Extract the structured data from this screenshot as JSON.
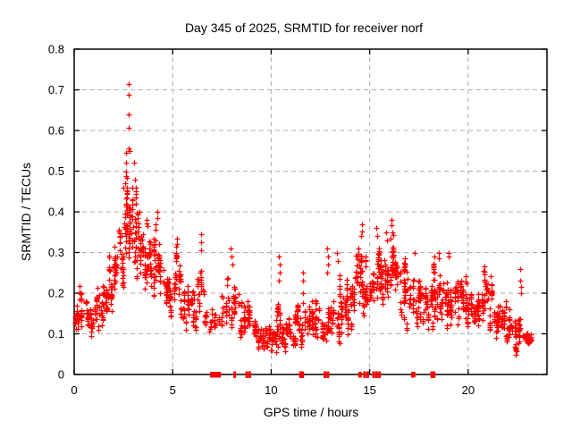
{
  "chart_data": {
    "type": "scatter",
    "title": "Day 345 of 2025, SRMTID for receiver norf",
    "xlabel": "GPS time / hours",
    "ylabel": "SRMTID / TECUs",
    "xlim": [
      0,
      24
    ],
    "ylim": [
      0,
      0.8
    ],
    "grid": true,
    "legend": "none",
    "marker": "plus",
    "marker_color": "#ff0000",
    "grid_color": "#b0b0b0",
    "frame_color": "#000000",
    "xticks": [
      [
        0,
        "0"
      ],
      [
        5,
        "5"
      ],
      [
        10,
        "10"
      ],
      [
        15,
        "15"
      ],
      [
        20,
        "20"
      ]
    ],
    "yticks": [
      [
        0,
        "0"
      ],
      [
        0.1,
        "0.1"
      ],
      [
        0.2,
        "0.2"
      ],
      [
        0.3,
        "0.3"
      ],
      [
        0.4,
        "0.4"
      ],
      [
        0.5,
        "0.5"
      ],
      [
        0.6,
        "0.6"
      ],
      [
        0.7,
        "0.7"
      ],
      [
        0.8,
        "0.8"
      ]
    ],
    "data_time_range_hours": [
      0,
      23.25
    ],
    "bins_format": [
      "bin_center_hour",
      "mean_tecu",
      "spread_tecu",
      "point_count"
    ],
    "bins": [
      [
        0.125,
        0.15,
        0.045,
        24
      ],
      [
        0.375,
        0.16,
        0.04,
        20
      ],
      [
        0.625,
        0.15,
        0.04,
        18
      ],
      [
        0.875,
        0.13,
        0.035,
        18
      ],
      [
        1.125,
        0.15,
        0.045,
        20
      ],
      [
        1.375,
        0.17,
        0.05,
        22
      ],
      [
        1.625,
        0.19,
        0.05,
        22
      ],
      [
        1.875,
        0.22,
        0.055,
        24
      ],
      [
        2.125,
        0.26,
        0.06,
        26
      ],
      [
        2.375,
        0.3,
        0.07,
        28
      ],
      [
        2.625,
        0.36,
        0.08,
        30
      ],
      [
        2.875,
        0.38,
        0.08,
        30
      ],
      [
        3.125,
        0.36,
        0.07,
        28
      ],
      [
        3.375,
        0.33,
        0.065,
        26
      ],
      [
        3.625,
        0.3,
        0.06,
        24
      ],
      [
        3.875,
        0.28,
        0.06,
        24
      ],
      [
        4.125,
        0.27,
        0.06,
        24
      ],
      [
        4.375,
        0.25,
        0.055,
        22
      ],
      [
        4.625,
        0.24,
        0.05,
        22
      ],
      [
        4.875,
        0.21,
        0.05,
        20
      ],
      [
        5.125,
        0.22,
        0.05,
        20
      ],
      [
        5.375,
        0.2,
        0.05,
        20
      ],
      [
        5.625,
        0.18,
        0.045,
        20
      ],
      [
        5.875,
        0.17,
        0.045,
        18
      ],
      [
        6.125,
        0.16,
        0.045,
        18
      ],
      [
        6.375,
        0.19,
        0.06,
        18
      ],
      [
        6.625,
        0.14,
        0.04,
        14
      ],
      [
        6.875,
        0.12,
        0.03,
        10
      ],
      [
        7.125,
        0.12,
        0.03,
        8
      ],
      [
        7.375,
        0.13,
        0.035,
        9
      ],
      [
        7.625,
        0.15,
        0.045,
        12
      ],
      [
        7.875,
        0.19,
        0.055,
        16
      ],
      [
        8.125,
        0.16,
        0.05,
        18
      ],
      [
        8.375,
        0.14,
        0.04,
        18
      ],
      [
        8.625,
        0.13,
        0.04,
        18
      ],
      [
        8.875,
        0.12,
        0.035,
        20
      ],
      [
        9.125,
        0.1,
        0.03,
        22
      ],
      [
        9.375,
        0.1,
        0.03,
        22
      ],
      [
        9.625,
        0.09,
        0.028,
        24
      ],
      [
        9.875,
        0.09,
        0.028,
        24
      ],
      [
        10.125,
        0.1,
        0.03,
        24
      ],
      [
        10.375,
        0.13,
        0.055,
        24
      ],
      [
        10.625,
        0.1,
        0.03,
        22
      ],
      [
        10.875,
        0.1,
        0.03,
        22
      ],
      [
        11.125,
        0.11,
        0.032,
        22
      ],
      [
        11.375,
        0.12,
        0.04,
        22
      ],
      [
        11.625,
        0.14,
        0.055,
        20
      ],
      [
        11.875,
        0.12,
        0.04,
        20
      ],
      [
        12.125,
        0.12,
        0.04,
        20
      ],
      [
        12.375,
        0.14,
        0.05,
        20
      ],
      [
        12.625,
        0.12,
        0.04,
        20
      ],
      [
        12.875,
        0.14,
        0.055,
        20
      ],
      [
        13.125,
        0.14,
        0.05,
        22
      ],
      [
        13.375,
        0.18,
        0.055,
        22
      ],
      [
        13.625,
        0.17,
        0.05,
        22
      ],
      [
        13.875,
        0.18,
        0.055,
        24
      ],
      [
        14.125,
        0.2,
        0.055,
        24
      ],
      [
        14.375,
        0.24,
        0.06,
        24
      ],
      [
        14.625,
        0.25,
        0.065,
        24
      ],
      [
        14.875,
        0.22,
        0.055,
        22
      ],
      [
        15.125,
        0.2,
        0.055,
        22
      ],
      [
        15.375,
        0.26,
        0.055,
        24
      ],
      [
        15.625,
        0.23,
        0.055,
        22
      ],
      [
        15.875,
        0.25,
        0.055,
        22
      ],
      [
        16.125,
        0.28,
        0.055,
        24
      ],
      [
        16.375,
        0.26,
        0.055,
        22
      ],
      [
        16.625,
        0.22,
        0.055,
        22
      ],
      [
        16.875,
        0.2,
        0.05,
        22
      ],
      [
        17.125,
        0.18,
        0.05,
        20
      ],
      [
        17.375,
        0.17,
        0.05,
        20
      ],
      [
        17.625,
        0.18,
        0.05,
        22
      ],
      [
        17.875,
        0.17,
        0.05,
        22
      ],
      [
        18.125,
        0.18,
        0.05,
        22
      ],
      [
        18.375,
        0.2,
        0.055,
        22
      ],
      [
        18.625,
        0.19,
        0.05,
        22
      ],
      [
        18.875,
        0.18,
        0.05,
        22
      ],
      [
        19.125,
        0.17,
        0.045,
        22
      ],
      [
        19.375,
        0.18,
        0.045,
        22
      ],
      [
        19.625,
        0.17,
        0.04,
        22
      ],
      [
        19.875,
        0.16,
        0.04,
        22
      ],
      [
        20.125,
        0.17,
        0.04,
        22
      ],
      [
        20.375,
        0.16,
        0.04,
        22
      ],
      [
        20.625,
        0.18,
        0.045,
        22
      ],
      [
        20.875,
        0.21,
        0.05,
        22
      ],
      [
        21.125,
        0.18,
        0.05,
        22
      ],
      [
        21.375,
        0.16,
        0.045,
        22
      ],
      [
        21.625,
        0.14,
        0.04,
        22
      ],
      [
        21.875,
        0.13,
        0.038,
        22
      ],
      [
        22.125,
        0.11,
        0.03,
        22
      ],
      [
        22.375,
        0.1,
        0.03,
        20
      ],
      [
        22.625,
        0.12,
        0.05,
        18
      ],
      [
        22.875,
        0.09,
        0.022,
        20
      ],
      [
        23.125,
        0.09,
        0.022,
        14
      ]
    ],
    "feature_points": [
      [
        2.75,
        0.715
      ],
      [
        2.75,
        0.688
      ],
      [
        2.76,
        0.64
      ],
      [
        2.77,
        0.606
      ],
      [
        2.78,
        0.556
      ],
      [
        2.8,
        0.55
      ],
      [
        2.62,
        0.545
      ],
      [
        2.63,
        0.52
      ],
      [
        2.62,
        0.5
      ],
      [
        2.64,
        0.487
      ],
      [
        2.6,
        0.47
      ],
      [
        3.05,
        0.52
      ],
      [
        3.1,
        0.48
      ],
      [
        2.5,
        0.46
      ],
      [
        2.95,
        0.46
      ],
      [
        3.15,
        0.45
      ],
      [
        4.2,
        0.4
      ],
      [
        4.22,
        0.385
      ],
      [
        5.2,
        0.335
      ],
      [
        5.22,
        0.32
      ],
      [
        6.43,
        0.345
      ],
      [
        6.45,
        0.325
      ],
      [
        6.44,
        0.305
      ],
      [
        7.95,
        0.31
      ],
      [
        8.0,
        0.29
      ],
      [
        8.02,
        0.27
      ],
      [
        10.4,
        0.29
      ],
      [
        10.42,
        0.27
      ],
      [
        10.44,
        0.25
      ],
      [
        10.41,
        0.23
      ],
      [
        11.62,
        0.25
      ],
      [
        11.6,
        0.23
      ],
      [
        12.85,
        0.31
      ],
      [
        12.88,
        0.29
      ],
      [
        12.9,
        0.27
      ],
      [
        12.86,
        0.25
      ],
      [
        13.35,
        0.3
      ],
      [
        13.38,
        0.28
      ],
      [
        14.6,
        0.37
      ],
      [
        14.62,
        0.352
      ],
      [
        14.58,
        0.34
      ],
      [
        15.35,
        0.36
      ],
      [
        15.38,
        0.34
      ],
      [
        15.85,
        0.35
      ],
      [
        15.87,
        0.33
      ],
      [
        16.1,
        0.38
      ],
      [
        16.12,
        0.366
      ],
      [
        16.15,
        0.35
      ],
      [
        16.05,
        0.335
      ],
      [
        17.3,
        0.3
      ],
      [
        18.5,
        0.3
      ],
      [
        18.52,
        0.285
      ],
      [
        19.0,
        0.3
      ],
      [
        19.03,
        0.29
      ],
      [
        22.65,
        0.26
      ],
      [
        22.66,
        0.23
      ],
      [
        22.67,
        0.215
      ],
      [
        22.68,
        0.2
      ]
    ],
    "baseline_marks": {
      "color": "#ff0000",
      "blocks_hours": [
        [
          6.9,
          7.45
        ],
        [
          14.42,
          14.6
        ],
        [
          17.1,
          17.32
        ]
      ],
      "singles_hours": [
        8.15,
        8.76,
        8.91,
        11.49,
        11.6,
        12.73,
        12.88,
        14.74,
        14.9,
        15.2,
        15.35,
        15.5,
        18.15,
        18.27
      ]
    }
  }
}
